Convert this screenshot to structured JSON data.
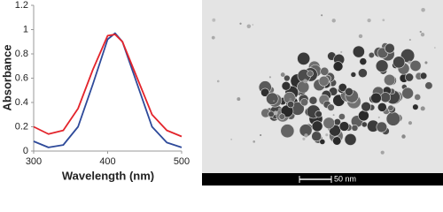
{
  "chart_data": {
    "type": "line",
    "x_label": "Wavelength (nm)",
    "y_label": "Absorbance",
    "x": [
      300,
      320,
      340,
      360,
      380,
      400,
      410,
      420,
      440,
      460,
      480,
      500
    ],
    "series": [
      {
        "color": "#2e4a9a",
        "values": [
          0.08,
          0.03,
          0.05,
          0.2,
          0.55,
          0.92,
          0.97,
          0.9,
          0.55,
          0.2,
          0.07,
          0.03
        ]
      },
      {
        "color": "#e3242b",
        "values": [
          0.2,
          0.14,
          0.17,
          0.35,
          0.67,
          0.95,
          0.96,
          0.9,
          0.6,
          0.3,
          0.17,
          0.12
        ]
      }
    ],
    "xlim": [
      300,
      500
    ],
    "xticks": [
      300,
      400,
      500
    ],
    "ylim": [
      0,
      1.2
    ],
    "yticks": [
      0,
      0.2,
      0.4,
      0.6,
      0.8,
      1,
      1.2
    ],
    "grid": false
  },
  "image": {
    "scale_bar": "50 nm"
  }
}
